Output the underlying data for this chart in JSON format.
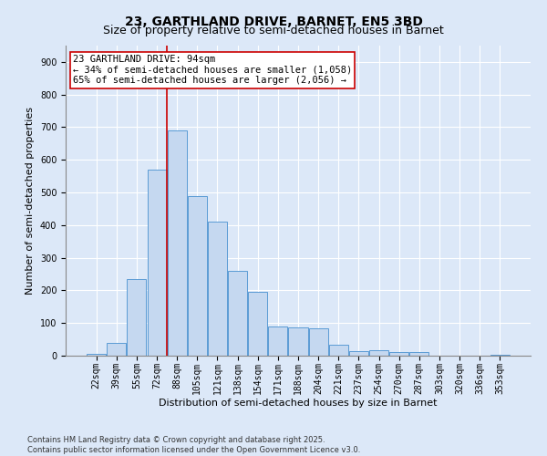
{
  "title": "23, GARTHLAND DRIVE, BARNET, EN5 3BD",
  "subtitle": "Size of property relative to semi-detached houses in Barnet",
  "xlabel": "Distribution of semi-detached houses by size in Barnet",
  "ylabel": "Number of semi-detached properties",
  "categories": [
    "22sqm",
    "39sqm",
    "55sqm",
    "72sqm",
    "88sqm",
    "105sqm",
    "121sqm",
    "138sqm",
    "154sqm",
    "171sqm",
    "188sqm",
    "204sqm",
    "221sqm",
    "237sqm",
    "254sqm",
    "270sqm",
    "287sqm",
    "303sqm",
    "320sqm",
    "336sqm",
    "353sqm"
  ],
  "values": [
    5,
    40,
    235,
    570,
    690,
    490,
    410,
    260,
    195,
    90,
    88,
    83,
    33,
    13,
    17,
    11,
    12,
    0,
    0,
    0,
    2
  ],
  "bar_color": "#c5d8f0",
  "bar_edge_color": "#5b9bd5",
  "vline_x_index": 4,
  "vline_color": "#cc0000",
  "annotation_text_line1": "23 GARTHLAND DRIVE: 94sqm",
  "annotation_text_line2": "← 34% of semi-detached houses are smaller (1,058)",
  "annotation_text_line3": "65% of semi-detached houses are larger (2,056) →",
  "annotation_box_color": "#ffffff",
  "annotation_box_edge_color": "#cc0000",
  "ylim": [
    0,
    950
  ],
  "yticks": [
    0,
    100,
    200,
    300,
    400,
    500,
    600,
    700,
    800,
    900
  ],
  "background_color": "#dce8f8",
  "plot_bg_color": "#dce8f8",
  "footer_text": "Contains HM Land Registry data © Crown copyright and database right 2025.\nContains public sector information licensed under the Open Government Licence v3.0.",
  "title_fontsize": 10,
  "subtitle_fontsize": 9,
  "axis_label_fontsize": 8,
  "tick_fontsize": 7,
  "annotation_fontsize": 7.5,
  "footer_fontsize": 6
}
